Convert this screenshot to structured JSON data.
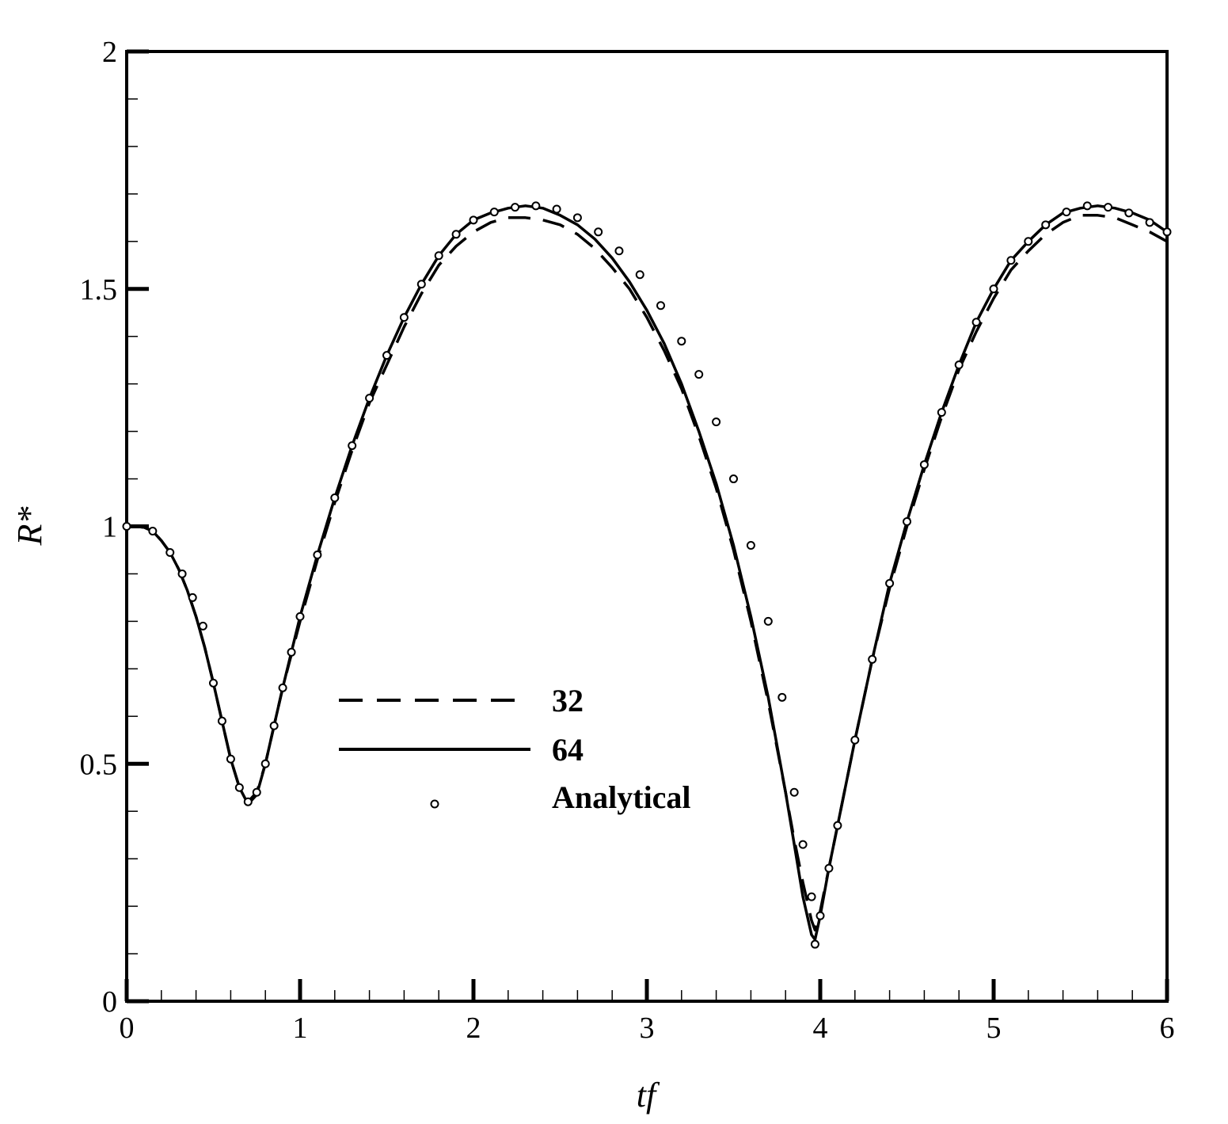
{
  "chart_data": {
    "type": "line",
    "title": "",
    "xlabel": "tf",
    "ylabel": "R*",
    "xlim": [
      0,
      6
    ],
    "ylim": [
      0,
      2
    ],
    "x_ticks": [
      "0",
      "1",
      "2",
      "3",
      "4",
      "5",
      "6"
    ],
    "y_ticks": [
      "0",
      "0.5",
      "1",
      "1.5",
      "2"
    ],
    "grid": false,
    "legend_position": "center-left",
    "series": [
      {
        "name": "32",
        "style": "dashed",
        "x": [
          0,
          0.05,
          0.1,
          0.15,
          0.2,
          0.25,
          0.3,
          0.35,
          0.4,
          0.45,
          0.5,
          0.55,
          0.6,
          0.65,
          0.7,
          0.75,
          0.8,
          0.85,
          0.9,
          0.95,
          1.0,
          1.1,
          1.2,
          1.3,
          1.4,
          1.5,
          1.6,
          1.7,
          1.8,
          1.9,
          2.0,
          2.1,
          2.2,
          2.3,
          2.4,
          2.5,
          2.6,
          2.7,
          2.8,
          2.9,
          3.0,
          3.1,
          3.2,
          3.3,
          3.4,
          3.5,
          3.6,
          3.7,
          3.8,
          3.85,
          3.9,
          3.95,
          3.97,
          4.0,
          4.05,
          4.1,
          4.2,
          4.3,
          4.4,
          4.5,
          4.6,
          4.7,
          4.8,
          4.9,
          5.0,
          5.1,
          5.2,
          5.3,
          5.4,
          5.5,
          5.6,
          5.7,
          5.8,
          5.9,
          6.0
        ],
        "y": [
          1.0,
          1.0,
          0.998,
          0.99,
          0.97,
          0.945,
          0.91,
          0.865,
          0.81,
          0.745,
          0.67,
          0.59,
          0.51,
          0.45,
          0.42,
          0.44,
          0.5,
          0.58,
          0.66,
          0.73,
          0.8,
          0.93,
          1.05,
          1.16,
          1.26,
          1.34,
          1.42,
          1.49,
          1.55,
          1.59,
          1.62,
          1.64,
          1.65,
          1.65,
          1.645,
          1.635,
          1.615,
          1.585,
          1.545,
          1.5,
          1.44,
          1.37,
          1.29,
          1.19,
          1.08,
          0.95,
          0.8,
          0.63,
          0.44,
          0.34,
          0.25,
          0.17,
          0.15,
          0.19,
          0.28,
          0.37,
          0.55,
          0.72,
          0.87,
          1.0,
          1.12,
          1.23,
          1.33,
          1.41,
          1.48,
          1.54,
          1.58,
          1.615,
          1.64,
          1.655,
          1.655,
          1.65,
          1.635,
          1.62,
          1.6
        ]
      },
      {
        "name": "64",
        "style": "solid",
        "x": [
          0,
          0.05,
          0.1,
          0.15,
          0.2,
          0.25,
          0.3,
          0.35,
          0.4,
          0.45,
          0.5,
          0.55,
          0.6,
          0.65,
          0.7,
          0.75,
          0.8,
          0.85,
          0.9,
          0.95,
          1.0,
          1.1,
          1.2,
          1.3,
          1.4,
          1.5,
          1.6,
          1.7,
          1.8,
          1.9,
          2.0,
          2.1,
          2.2,
          2.3,
          2.4,
          2.5,
          2.6,
          2.7,
          2.8,
          2.9,
          3.0,
          3.1,
          3.2,
          3.3,
          3.4,
          3.5,
          3.6,
          3.7,
          3.8,
          3.85,
          3.9,
          3.95,
          3.97,
          4.0,
          4.05,
          4.1,
          4.2,
          4.3,
          4.4,
          4.5,
          4.6,
          4.7,
          4.8,
          4.9,
          5.0,
          5.1,
          5.2,
          5.3,
          5.4,
          5.5,
          5.6,
          5.7,
          5.8,
          5.9,
          6.0
        ],
        "y": [
          1.0,
          1.0,
          0.998,
          0.99,
          0.97,
          0.945,
          0.91,
          0.865,
          0.81,
          0.745,
          0.67,
          0.59,
          0.51,
          0.45,
          0.415,
          0.435,
          0.5,
          0.58,
          0.66,
          0.735,
          0.81,
          0.94,
          1.06,
          1.17,
          1.27,
          1.36,
          1.44,
          1.51,
          1.57,
          1.615,
          1.645,
          1.66,
          1.67,
          1.675,
          1.67,
          1.655,
          1.635,
          1.605,
          1.565,
          1.515,
          1.455,
          1.385,
          1.3,
          1.2,
          1.09,
          0.96,
          0.81,
          0.64,
          0.44,
          0.33,
          0.22,
          0.14,
          0.13,
          0.18,
          0.28,
          0.37,
          0.55,
          0.72,
          0.88,
          1.01,
          1.13,
          1.24,
          1.34,
          1.43,
          1.5,
          1.56,
          1.6,
          1.635,
          1.66,
          1.67,
          1.675,
          1.67,
          1.66,
          1.645,
          1.62
        ]
      },
      {
        "name": "Analytical",
        "style": "markers",
        "x": [
          0,
          0.15,
          0.25,
          0.32,
          0.38,
          0.44,
          0.5,
          0.55,
          0.6,
          0.65,
          0.7,
          0.75,
          0.8,
          0.85,
          0.9,
          0.95,
          1.0,
          1.1,
          1.2,
          1.3,
          1.4,
          1.5,
          1.6,
          1.7,
          1.8,
          1.9,
          2.0,
          2.12,
          2.24,
          2.36,
          2.48,
          2.6,
          2.72,
          2.84,
          2.96,
          3.08,
          3.2,
          3.3,
          3.4,
          3.5,
          3.6,
          3.7,
          3.78,
          3.85,
          3.9,
          3.95,
          3.97,
          4.0,
          4.05,
          4.1,
          4.2,
          4.3,
          4.4,
          4.5,
          4.6,
          4.7,
          4.8,
          4.9,
          5.0,
          5.1,
          5.2,
          5.3,
          5.42,
          5.54,
          5.66,
          5.78,
          5.9,
          6.0
        ],
        "y": [
          1.0,
          0.99,
          0.945,
          0.9,
          0.85,
          0.79,
          0.67,
          0.59,
          0.51,
          0.45,
          0.42,
          0.44,
          0.5,
          0.58,
          0.66,
          0.735,
          0.81,
          0.94,
          1.06,
          1.17,
          1.27,
          1.36,
          1.44,
          1.51,
          1.57,
          1.615,
          1.645,
          1.662,
          1.672,
          1.675,
          1.668,
          1.65,
          1.62,
          1.58,
          1.53,
          1.465,
          1.39,
          1.32,
          1.22,
          1.1,
          0.96,
          0.8,
          0.64,
          0.44,
          0.33,
          0.22,
          0.12,
          0.18,
          0.28,
          0.37,
          0.55,
          0.72,
          0.88,
          1.01,
          1.13,
          1.24,
          1.34,
          1.43,
          1.5,
          1.56,
          1.6,
          1.635,
          1.662,
          1.675,
          1.672,
          1.66,
          1.64,
          1.62
        ]
      }
    ]
  }
}
